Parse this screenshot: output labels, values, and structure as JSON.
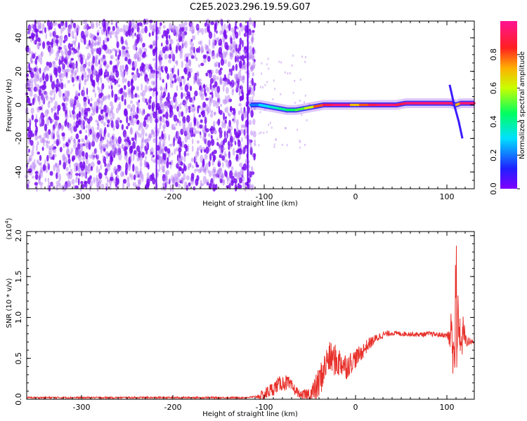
{
  "title": "C2E5.2023.296.19.59.G07",
  "chart_data": [
    {
      "type": "heatmap",
      "xlabel": "Height of straight line (km)",
      "ylabel": "Frequency (Hz)",
      "xlim": [
        -360,
        130
      ],
      "ylim": [
        -50,
        50
      ],
      "xticks": [
        -300,
        -200,
        -100,
        0,
        100
      ],
      "yticks": [
        -40,
        -20,
        0,
        20,
        40
      ],
      "noise_region": {
        "x_from": -360,
        "x_to": -110,
        "freq_range": [
          -50,
          50
        ],
        "level": 0.12
      },
      "ridge": {
        "x": [
          -115,
          -105,
          -95,
          -85,
          -75,
          -65,
          -55,
          -45,
          -35,
          -25,
          -15,
          -5,
          5,
          15,
          25,
          35,
          45,
          55,
          65,
          75,
          85,
          95,
          105,
          110,
          115,
          120,
          130
        ],
        "freq": [
          0,
          0,
          -1,
          -2,
          -3,
          -3,
          -2,
          -1,
          0,
          0,
          0,
          0,
          0,
          0,
          0,
          0,
          0,
          1,
          1,
          1,
          1,
          1,
          1,
          0,
          1,
          1,
          1
        ],
        "amplitude": [
          0.2,
          0.3,
          0.35,
          0.4,
          0.45,
          0.5,
          0.6,
          0.8,
          0.9,
          0.95,
          0.95,
          0.7,
          0.8,
          0.9,
          0.95,
          0.95,
          0.9,
          0.95,
          0.95,
          0.95,
          0.95,
          0.95,
          0.95,
          0.7,
          0.95,
          0.95,
          0.95
        ]
      },
      "feature_line": {
        "x": [
          103,
          108,
          113,
          117
        ],
        "freq": [
          12,
          0,
          -10,
          -20
        ]
      },
      "colorbar": {
        "label": "Normalized spectral amplitude",
        "range": [
          0,
          1
        ],
        "ticks": [
          0.0,
          0.2,
          0.4,
          0.6,
          0.8
        ],
        "tick_labels": [
          "0.0",
          "0.2",
          "0.4",
          "0.6",
          "0.8"
        ],
        "colormap": "rainbow (purple-blue-cyan-green-yellow-red-magenta)"
      }
    },
    {
      "type": "line",
      "xlabel": "Height of straight line (km)",
      "ylabel": "SNR (10 * v/v)",
      "y_scale_label": "(x10^4)",
      "y_multiplier": "(x10",
      "y_multiplier_exp": "4",
      "y_multiplier_close": ")",
      "xlim": [
        -360,
        130
      ],
      "ylim": [
        0,
        2.05
      ],
      "xticks": [
        -300,
        -200,
        -100,
        0,
        100
      ],
      "yticks": [
        0.0,
        0.5,
        1.0,
        1.5,
        2.0
      ],
      "ytick_labels": [
        "0.0",
        "0.5",
        "1.0",
        "1.5",
        "2.0"
      ],
      "series": [
        {
          "color": "#e8302a",
          "x": [
            -360,
            -300,
            -200,
            -120,
            -110,
            -100,
            -95,
            -90,
            -85,
            -80,
            -75,
            -70,
            -65,
            -60,
            -55,
            -50,
            -45,
            -40,
            -35,
            -30,
            -25,
            -20,
            -15,
            -10,
            -5,
            0,
            5,
            10,
            15,
            20,
            25,
            30,
            35,
            40,
            50,
            60,
            70,
            80,
            90,
            100,
            105,
            108,
            110,
            112,
            114,
            116,
            118,
            120,
            125,
            130
          ],
          "y": [
            0.02,
            0.02,
            0.02,
            0.02,
            0.03,
            0.05,
            0.1,
            0.13,
            0.18,
            0.2,
            0.2,
            0.15,
            0.1,
            0.05,
            0.05,
            0.05,
            0.1,
            0.2,
            0.35,
            0.5,
            0.5,
            0.45,
            0.45,
            0.4,
            0.45,
            0.5,
            0.55,
            0.62,
            0.68,
            0.72,
            0.76,
            0.79,
            0.8,
            0.81,
            0.8,
            0.8,
            0.79,
            0.8,
            0.79,
            0.78,
            0.77,
            0.7,
            0.1,
            1.0,
            0.85,
            0.6,
            0.9,
            0.72,
            0.7,
            0.7
          ]
        }
      ],
      "noise_amplitude": {
        "x": [
          -360,
          -110,
          -100,
          -75,
          -60,
          -40,
          -20,
          0,
          20,
          40,
          100,
          106,
          121,
          130
        ],
        "amp": [
          0.01,
          0.01,
          0.08,
          0.1,
          0.04,
          0.2,
          0.2,
          0.12,
          0.06,
          0.03,
          0.03,
          0.45,
          0.08,
          0.02
        ]
      }
    }
  ]
}
